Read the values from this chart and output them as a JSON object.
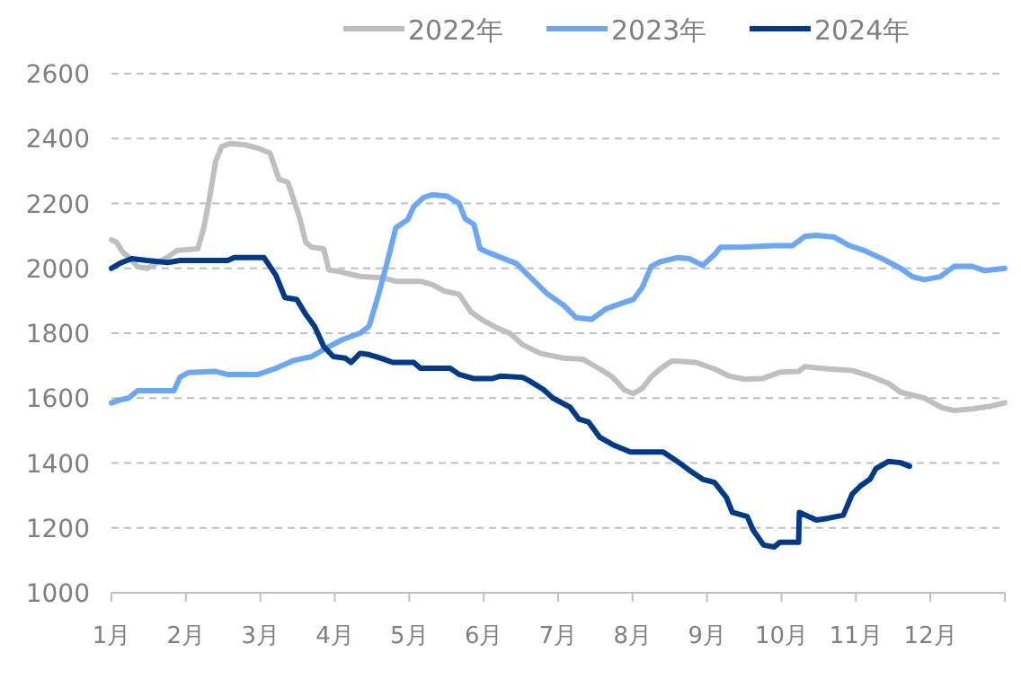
{
  "chart_data": {
    "type": "line",
    "legend": "top",
    "grid": "y",
    "marker": "none",
    "line_style": "solid",
    "xlim": [
      1,
      13
    ],
    "ylim": [
      1000,
      2600
    ],
    "xticks": [
      {
        "value": 1,
        "label": "1月"
      },
      {
        "value": 2,
        "label": "2月"
      },
      {
        "value": 3,
        "label": "3月"
      },
      {
        "value": 4,
        "label": "4月"
      },
      {
        "value": 5,
        "label": "5月"
      },
      {
        "value": 6,
        "label": "6月"
      },
      {
        "value": 7,
        "label": "7月"
      },
      {
        "value": 8,
        "label": "8月"
      },
      {
        "value": 9,
        "label": "9月"
      },
      {
        "value": 10,
        "label": "10月"
      },
      {
        "value": 11,
        "label": "11月"
      },
      {
        "value": 12,
        "label": "12月"
      },
      {
        "value": 13,
        "label": null
      }
    ],
    "yticks": [
      1000,
      1200,
      1400,
      1600,
      1800,
      2000,
      2200,
      2400,
      2600
    ],
    "series": [
      {
        "name": "2022年",
        "color": "#bfbfbf",
        "x": [
          1,
          1.07,
          1.15,
          1.23,
          1.35,
          1.48,
          1.6,
          1.76,
          1.88,
          2.16,
          2.24,
          2.32,
          2.4,
          2.48,
          2.6,
          2.81,
          2.97,
          3.13,
          3.25,
          3.37,
          3.53,
          3.61,
          3.69,
          3.85,
          3.92,
          4.06,
          4.34,
          4.66,
          4.82,
          5.15,
          5.31,
          5.47,
          5.67,
          5.83,
          5.99,
          6.19,
          6.35,
          6.52,
          6.76,
          7.08,
          7.33,
          7.56,
          7.73,
          7.89,
          8.01,
          8.13,
          8.25,
          8.37,
          8.53,
          8.85,
          9.1,
          9.3,
          9.5,
          9.74,
          9.98,
          10.23,
          10.31,
          10.63,
          10.95,
          11.19,
          11.44,
          11.6,
          11.92,
          12.16,
          12.32,
          12.56,
          12.81,
          13
        ],
        "values": [
          2088,
          2080,
          2050,
          2035,
          2005,
          2000,
          2015,
          2035,
          2055,
          2060,
          2125,
          2220,
          2330,
          2375,
          2385,
          2380,
          2370,
          2355,
          2275,
          2265,
          2155,
          2080,
          2065,
          2060,
          1995,
          1990,
          1975,
          1970,
          1960,
          1960,
          1950,
          1930,
          1920,
          1865,
          1840,
          1815,
          1800,
          1765,
          1738,
          1723,
          1720,
          1690,
          1665,
          1625,
          1614,
          1630,
          1665,
          1690,
          1715,
          1710,
          1690,
          1668,
          1658,
          1660,
          1680,
          1682,
          1697,
          1690,
          1685,
          1668,
          1645,
          1618,
          1600,
          1570,
          1562,
          1567,
          1575,
          1586
        ]
      },
      {
        "name": "2023年",
        "color": "#6aa8f7",
        "x": [
          1,
          1.11,
          1.23,
          1.35,
          1.6,
          1.84,
          1.92,
          2.04,
          2.4,
          2.56,
          2.97,
          3.21,
          3.45,
          3.69,
          3.9,
          4.1,
          4.34,
          4.46,
          4.58,
          4.7,
          4.82,
          4.98,
          5.06,
          5.19,
          5.31,
          5.51,
          5.67,
          5.75,
          5.87,
          5.95,
          6.03,
          6.19,
          6.44,
          6.6,
          6.85,
          7.08,
          7.24,
          7.45,
          7.65,
          7.89,
          8.01,
          8.13,
          8.25,
          8.37,
          8.6,
          8.76,
          8.94,
          9.1,
          9.18,
          9.5,
          9.9,
          10.15,
          10.31,
          10.47,
          10.71,
          10.91,
          11.11,
          11.35,
          11.6,
          11.76,
          11.92,
          12.13,
          12.32,
          12.56,
          12.73,
          13
        ],
        "values": [
          1585,
          1594,
          1600,
          1623,
          1623,
          1623,
          1664,
          1679,
          1682,
          1673,
          1673,
          1692,
          1716,
          1728,
          1756,
          1780,
          1800,
          1821,
          1913,
          2015,
          2125,
          2150,
          2190,
          2218,
          2227,
          2222,
          2200,
          2153,
          2135,
          2061,
          2052,
          2037,
          2015,
          1978,
          1922,
          1885,
          1848,
          1843,
          1876,
          1895,
          1904,
          1941,
          2006,
          2020,
          2033,
          2030,
          2009,
          2042,
          2065,
          2066,
          2070,
          2070,
          2098,
          2102,
          2096,
          2070,
          2055,
          2030,
          2000,
          1974,
          1965,
          1974,
          2006,
          2006,
          1993,
          2000
        ]
      },
      {
        "name": "2024年",
        "color": "#003a8c",
        "x": [
          1,
          1.11,
          1.27,
          1.48,
          1.76,
          1.92,
          2.56,
          2.65,
          3.05,
          3.21,
          3.33,
          3.49,
          3.61,
          3.73,
          3.85,
          3.98,
          4.14,
          4.22,
          4.34,
          4.46,
          4.62,
          4.78,
          5.06,
          5.15,
          5.55,
          5.67,
          5.87,
          6.11,
          6.23,
          6.52,
          6.6,
          6.8,
          6.93,
          7.16,
          7.28,
          7.41,
          7.56,
          7.73,
          7.97,
          8.41,
          8.6,
          8.76,
          8.94,
          9.1,
          9.26,
          9.34,
          9.54,
          9.62,
          9.76,
          9.9,
          9.98,
          10.23,
          10.24,
          10.47,
          10.63,
          10.83,
          10.95,
          11.07,
          11.19,
          11.27,
          11.44,
          11.6,
          11.72
        ],
        "values": [
          2000,
          2015,
          2030,
          2024,
          2018,
          2024,
          2024,
          2033,
          2033,
          1978,
          1910,
          1904,
          1858,
          1821,
          1760,
          1728,
          1723,
          1710,
          1738,
          1734,
          1723,
          1710,
          1710,
          1692,
          1692,
          1673,
          1660,
          1660,
          1668,
          1664,
          1655,
          1627,
          1600,
          1572,
          1535,
          1526,
          1479,
          1457,
          1434,
          1434,
          1405,
          1378,
          1350,
          1340,
          1294,
          1248,
          1235,
          1193,
          1147,
          1141,
          1156,
          1156,
          1248,
          1224,
          1230,
          1239,
          1304,
          1331,
          1350,
          1383,
          1405,
          1401,
          1390
        ]
      }
    ]
  }
}
